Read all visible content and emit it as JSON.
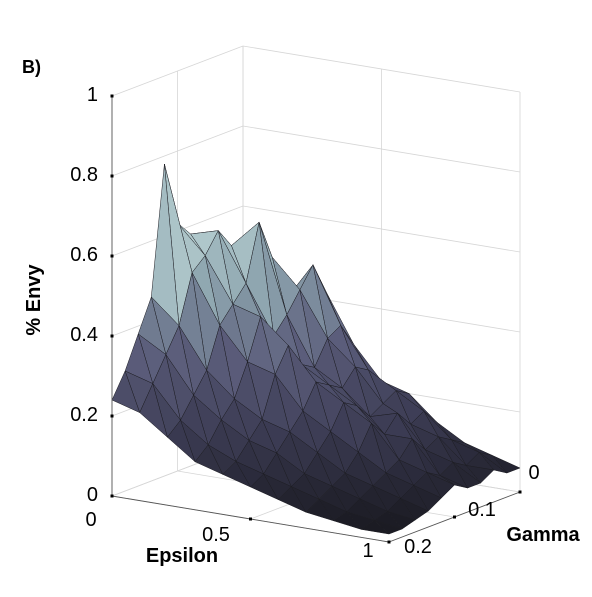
{
  "panel_label": "B)",
  "chart_data": {
    "type": "surface3d",
    "zlabel": "% Envy",
    "xlabel": "Epsilon",
    "ylabel": "Gamma",
    "xlim": [
      0,
      1
    ],
    "ylim": [
      0,
      0.2
    ],
    "zlim": [
      0,
      1
    ],
    "z_ticks": [
      "0",
      "0.2",
      "0.4",
      "0.6",
      "0.8",
      "1"
    ],
    "x_ticks": [
      "0",
      "0.5",
      "1"
    ],
    "y_ticks": [
      "0",
      "0.1",
      "0.2"
    ],
    "colormap": [
      "#1a1a22",
      "#3c3c54",
      "#5c5e7c",
      "#8fa7b0",
      "#c8e0e0",
      "#f4fbfb"
    ],
    "epsilon": [
      0.0,
      0.1,
      0.2,
      0.3,
      0.4,
      0.5,
      0.6,
      0.7,
      0.8,
      0.9,
      1.0
    ],
    "gamma": [
      0.0,
      0.02,
      0.04,
      0.06,
      0.08,
      0.1,
      0.12,
      0.14,
      0.16,
      0.18,
      0.2
    ],
    "z": [
      [
        0.4,
        0.42,
        0.45,
        0.5,
        0.58,
        0.62,
        0.78,
        0.46,
        0.38,
        0.3,
        0.24
      ],
      [
        0.38,
        0.41,
        0.46,
        0.55,
        0.6,
        0.55,
        0.52,
        0.4,
        0.34,
        0.28,
        0.22
      ],
      [
        0.36,
        0.4,
        0.52,
        0.62,
        0.48,
        0.44,
        0.4,
        0.3,
        0.25,
        0.2,
        0.17
      ],
      [
        0.42,
        0.5,
        0.45,
        0.4,
        0.36,
        0.42,
        0.32,
        0.24,
        0.2,
        0.15,
        0.12
      ],
      [
        0.3,
        0.36,
        0.34,
        0.28,
        0.3,
        0.36,
        0.3,
        0.2,
        0.16,
        0.12,
        0.1
      ],
      [
        0.22,
        0.26,
        0.28,
        0.24,
        0.26,
        0.28,
        0.22,
        0.18,
        0.14,
        0.1,
        0.08
      ],
      [
        0.2,
        0.22,
        0.2,
        0.18,
        0.22,
        0.24,
        0.18,
        0.14,
        0.1,
        0.08,
        0.06
      ],
      [
        0.14,
        0.18,
        0.16,
        0.2,
        0.16,
        0.2,
        0.14,
        0.1,
        0.08,
        0.06,
        0.04
      ],
      [
        0.1,
        0.12,
        0.14,
        0.12,
        0.16,
        0.12,
        0.1,
        0.08,
        0.06,
        0.04,
        0.03
      ],
      [
        0.08,
        0.1,
        0.08,
        0.1,
        0.08,
        0.1,
        0.08,
        0.06,
        0.04,
        0.03,
        0.02
      ],
      [
        0.06,
        0.06,
        0.08,
        0.06,
        0.06,
        0.08,
        0.06,
        0.04,
        0.03,
        0.02,
        0.02
      ]
    ]
  }
}
